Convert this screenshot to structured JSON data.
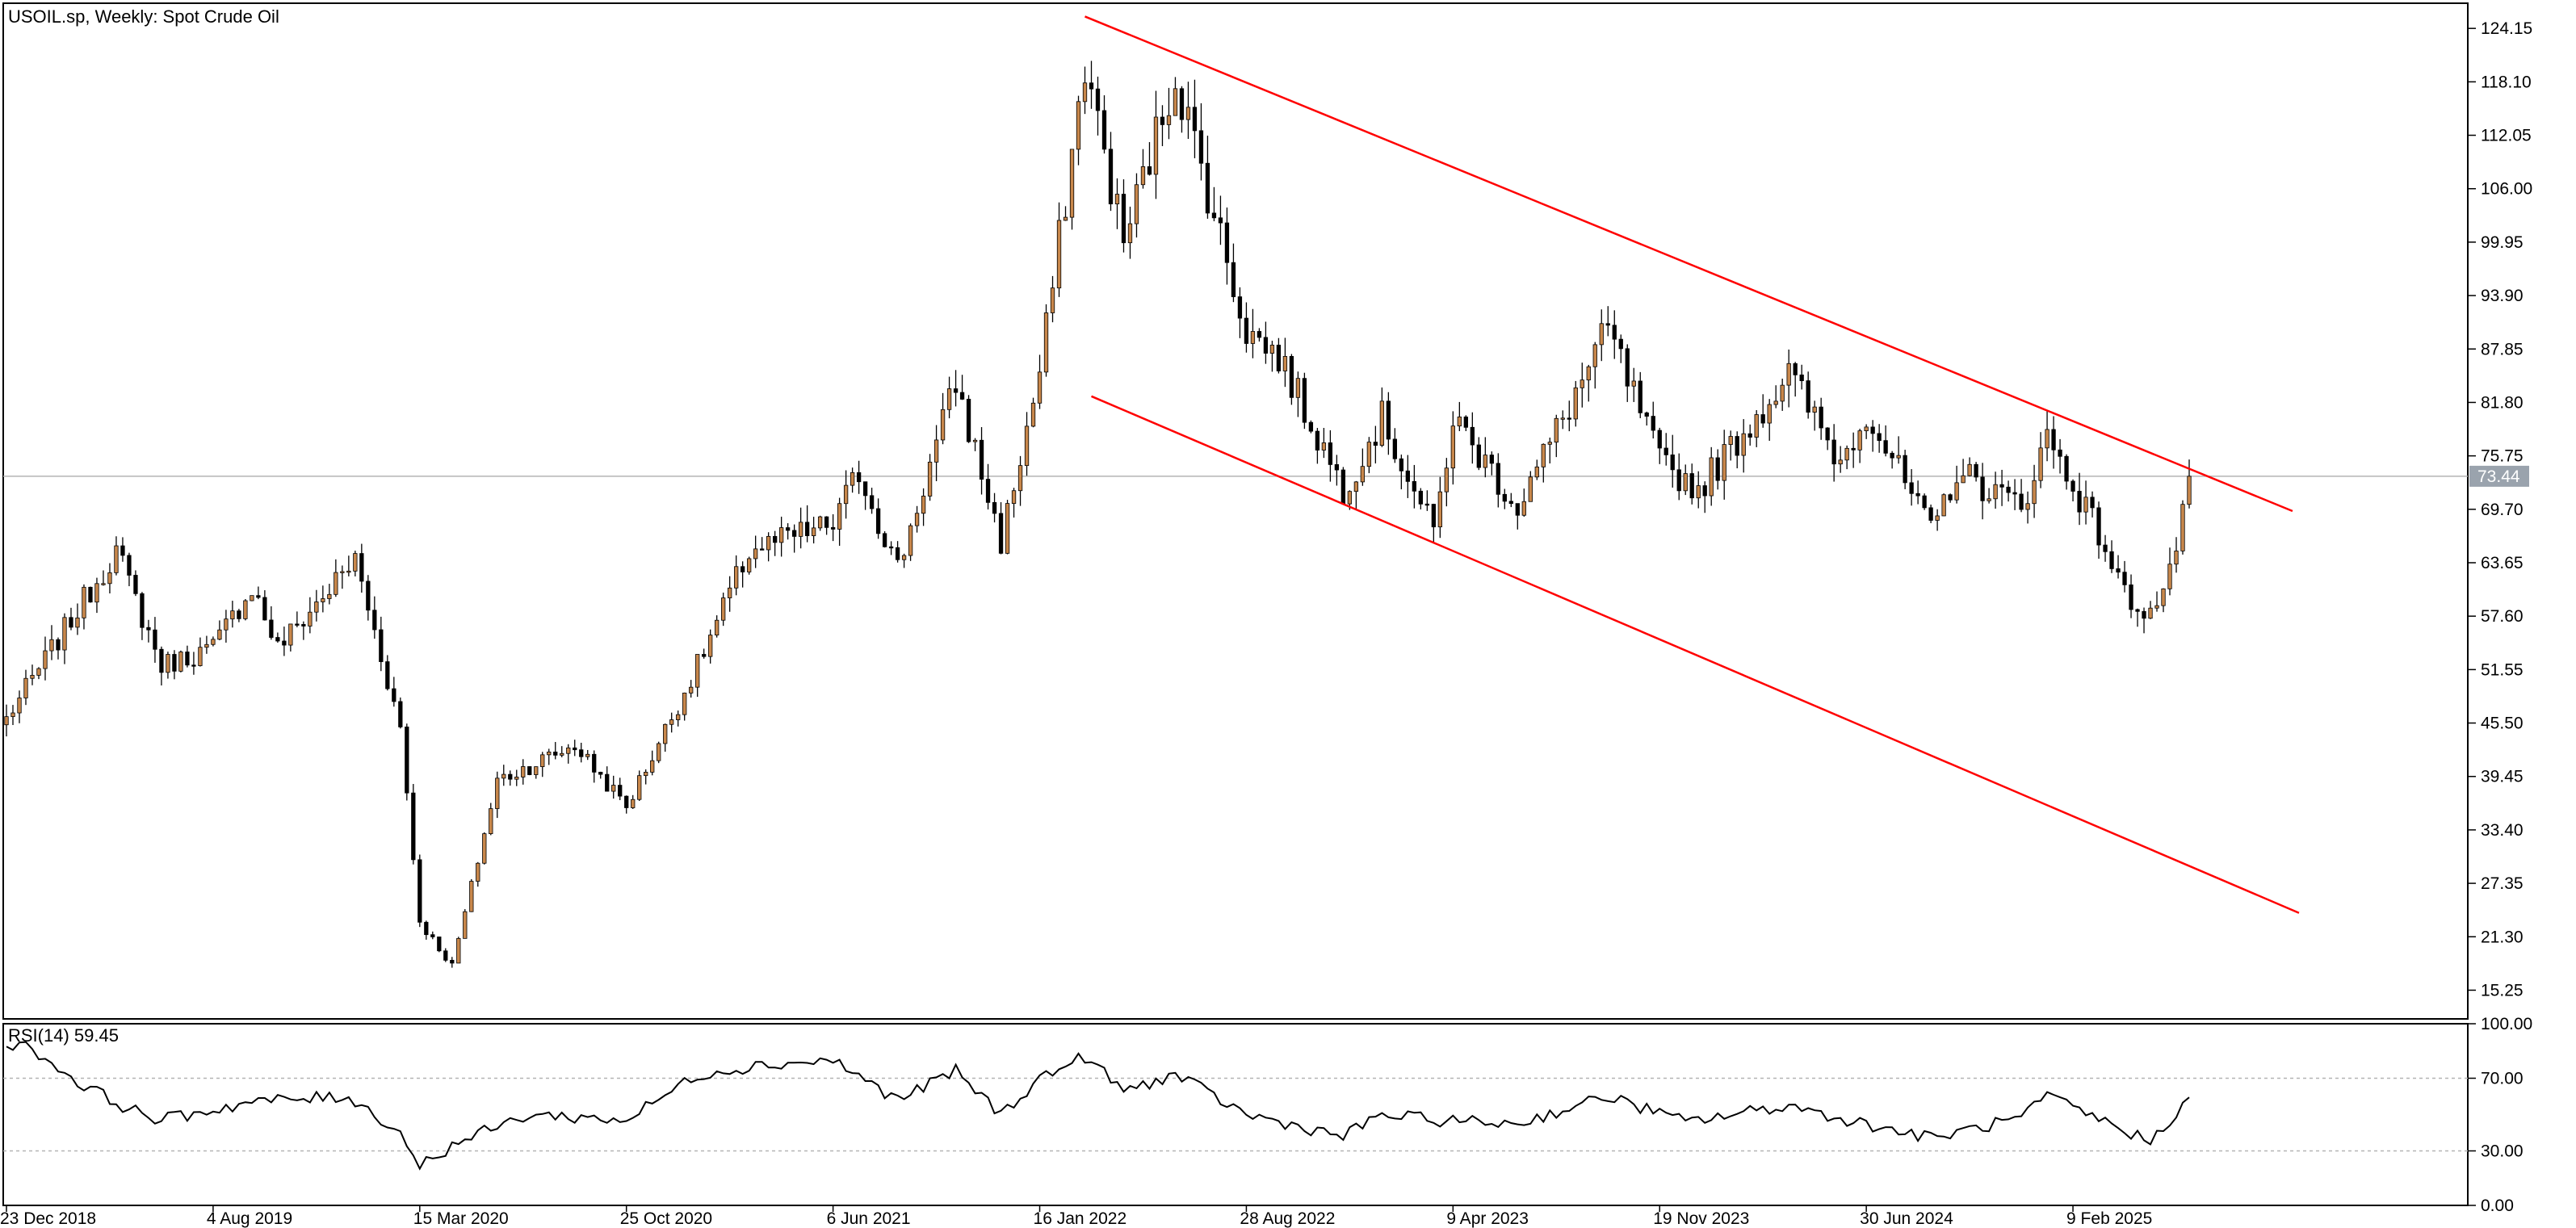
{
  "header": {
    "title": "USOIL.sp, Weekly:  Spot Crude Oil"
  },
  "price_axis": {
    "ticks": [
      "124.15",
      "118.10",
      "112.05",
      "106.00",
      "99.95",
      "93.90",
      "87.85",
      "81.80",
      "75.75",
      "69.70",
      "63.65",
      "57.60",
      "51.55",
      "45.50",
      "39.45",
      "33.40",
      "27.35",
      "21.30",
      "15.25"
    ],
    "current_price": "73.44"
  },
  "rsi_panel": {
    "label": "RSI(14) 59.45",
    "ticks": [
      "100.00",
      "70.00",
      "30.00",
      "0.00"
    ],
    "levels": [
      70,
      30
    ]
  },
  "time_axis": {
    "labels": [
      "23 Dec 2018",
      "4 Aug 2019",
      "15 Mar 2020",
      "25 Oct 2020",
      "6 Jun 2021",
      "16 Jan 2022",
      "28 Aug 2022",
      "9 Apr 2023",
      "19 Nov 2023",
      "30 Jun 2024",
      "9 Feb 2025"
    ]
  },
  "colors": {
    "bull": "#c8874b",
    "bear": "#000000",
    "channel": "#ff0000",
    "rsi": "#000000",
    "grid_line": "#b4b4b4"
  },
  "chart_data": [
    {
      "type": "candlestick",
      "title": "USOIL.sp, Weekly:  Spot Crude Oil",
      "ylim": [
        12.0,
        127.0
      ],
      "series_anchor_points": [
        {
          "date": "2018-12-23",
          "close": 46
        },
        {
          "date": "2019-04-21",
          "close": 65
        },
        {
          "date": "2019-06-09",
          "close": 52
        },
        {
          "date": "2019-08-04",
          "close": 54
        },
        {
          "date": "2019-09-15",
          "close": 61
        },
        {
          "date": "2019-10-13",
          "close": 54
        },
        {
          "date": "2020-01-05",
          "close": 64
        },
        {
          "date": "2020-02-23",
          "close": 45
        },
        {
          "date": "2020-03-15",
          "close": 23
        },
        {
          "date": "2020-04-19",
          "close": 18
        },
        {
          "date": "2020-06-07",
          "close": 39
        },
        {
          "date": "2020-08-30",
          "close": 43
        },
        {
          "date": "2020-10-25",
          "close": 36
        },
        {
          "date": "2021-01-10",
          "close": 52
        },
        {
          "date": "2021-03-07",
          "close": 65
        },
        {
          "date": "2021-06-06",
          "close": 68
        },
        {
          "date": "2021-07-04",
          "close": 74
        },
        {
          "date": "2021-08-15",
          "close": 63
        },
        {
          "date": "2021-10-17",
          "close": 84
        },
        {
          "date": "2021-12-05",
          "close": 66
        },
        {
          "date": "2022-01-16",
          "close": 85
        },
        {
          "date": "2022-03-06",
          "close": 120
        },
        {
          "date": "2022-04-17",
          "close": 100
        },
        {
          "date": "2022-06-12",
          "close": 119
        },
        {
          "date": "2022-08-28",
          "close": 90
        },
        {
          "date": "2022-10-02",
          "close": 87
        },
        {
          "date": "2022-12-11",
          "close": 72
        },
        {
          "date": "2023-01-22",
          "close": 80
        },
        {
          "date": "2023-03-19",
          "close": 67
        },
        {
          "date": "2023-04-09",
          "close": 80
        },
        {
          "date": "2023-06-18",
          "close": 70
        },
        {
          "date": "2023-09-24",
          "close": 90
        },
        {
          "date": "2023-11-19",
          "close": 75
        },
        {
          "date": "2023-12-31",
          "close": 72
        },
        {
          "date": "2024-04-07",
          "close": 85
        },
        {
          "date": "2024-06-02",
          "close": 75
        },
        {
          "date": "2024-06-30",
          "close": 81
        },
        {
          "date": "2024-09-08",
          "close": 67
        },
        {
          "date": "2024-10-06",
          "close": 74
        },
        {
          "date": "2024-12-15",
          "close": 70
        },
        {
          "date": "2025-01-12",
          "close": 78
        },
        {
          "date": "2025-03-09",
          "close": 67
        },
        {
          "date": "2025-04-06",
          "close": 60
        },
        {
          "date": "2025-05-04",
          "close": 58
        },
        {
          "date": "2025-05-25",
          "close": 62
        },
        {
          "date": "2025-06-15",
          "close": 73.44
        }
      ],
      "trendlines": [
        {
          "name": "upper_channel",
          "from": {
            "date": "2022-03-06",
            "price": 125.5
          },
          "to": {
            "date": "2025-10-05",
            "price": 69.5
          }
        },
        {
          "name": "lower_channel",
          "from": {
            "date": "2022-03-13",
            "price": 82.5
          },
          "to": {
            "date": "2025-10-12",
            "price": 24.0
          }
        }
      ]
    },
    {
      "type": "line",
      "title": "RSI(14) 59.45",
      "ylim": [
        0,
        100
      ],
      "x": [
        "2018-12-23",
        "2019-01-20",
        "2019-03-10",
        "2019-05-05",
        "2019-06-09",
        "2019-09-15",
        "2019-12-29",
        "2020-02-23",
        "2020-03-15",
        "2020-04-26",
        "2020-07-12",
        "2020-10-25",
        "2021-01-10",
        "2021-03-14",
        "2021-06-06",
        "2021-08-15",
        "2021-10-17",
        "2021-12-05",
        "2022-01-16",
        "2022-03-06",
        "2022-04-17",
        "2022-06-12",
        "2022-08-28",
        "2022-12-11",
        "2023-01-22",
        "2023-03-19",
        "2023-06-18",
        "2023-09-24",
        "2023-12-17",
        "2024-04-07",
        "2024-06-02",
        "2024-09-08",
        "2024-12-15",
        "2025-01-12",
        "2025-05-04",
        "2025-06-15"
      ],
      "series": [
        {
          "values": [
            90,
            86,
            68,
            53,
            47,
            57,
            60,
            40,
            22,
            35,
            50,
            47,
            72,
            77,
            80,
            58,
            74,
            50,
            70,
            82,
            63,
            72,
            50,
            38,
            50,
            47,
            45,
            60,
            46,
            55,
            48,
            37,
            48,
            60,
            35,
            59.45
          ]
        }
      ]
    }
  ]
}
